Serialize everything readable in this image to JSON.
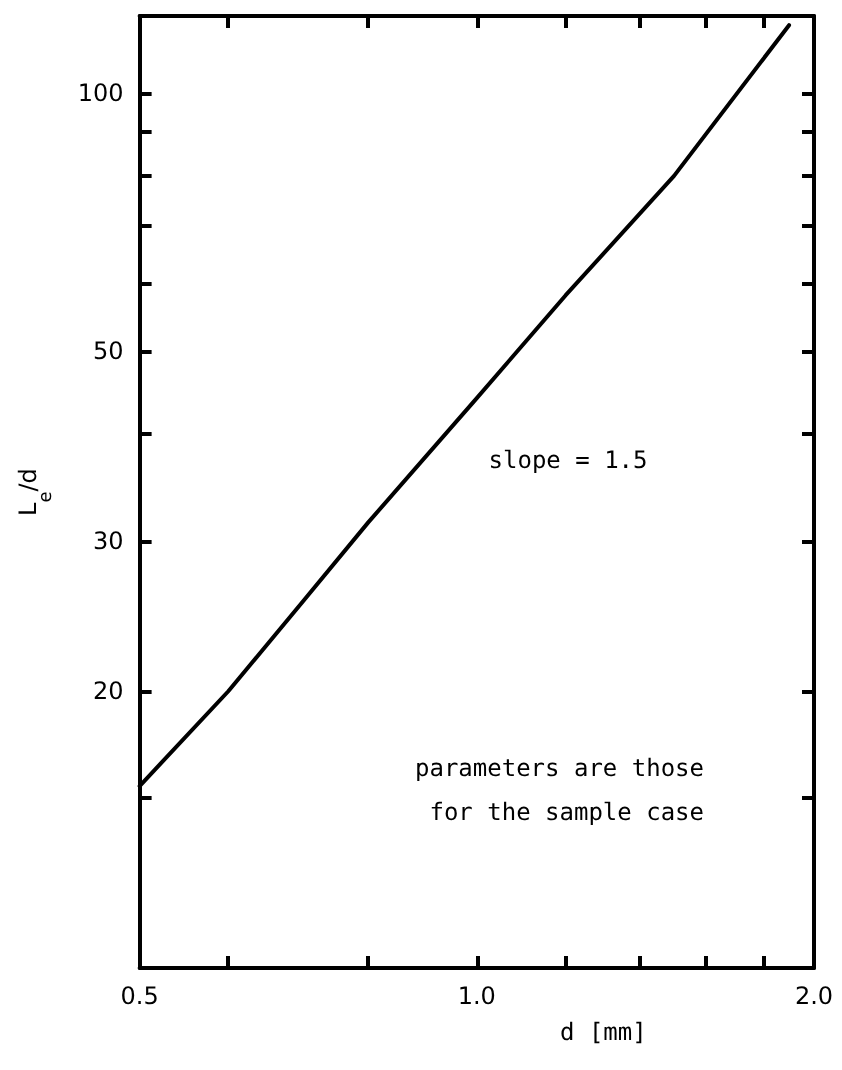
{
  "chart_data": {
    "type": "line",
    "xlabel": "d [mm]",
    "ylabel": "L$_{e}$/d",
    "x": [
      0.5,
      0.6,
      0.7,
      0.8,
      1.0,
      1.2,
      1.5,
      1.9
    ],
    "series": [
      {
        "color": "#000000",
        "values": [
          15.5,
          20,
          25.5,
          31.5,
          44,
          58,
          80,
          120
        ]
      }
    ],
    "log": "xy",
    "xlim": [
      0.5,
      2.0
    ],
    "ylim": [
      9.5,
      123
    ],
    "xticks": [
      0.5,
      {
        "value": 0.6,
        "label": null
      },
      {
        "value": 0.8,
        "label": null
      },
      {
        "value": 1.0,
        "label": "1.0"
      },
      {
        "value": 1.2,
        "label": null
      },
      {
        "value": 1.4,
        "label": null
      },
      {
        "value": 1.6,
        "label": null
      },
      {
        "value": 1.8,
        "label": null
      },
      {
        "value": 2.0,
        "label": "2.0"
      }
    ],
    "yticks": [
      {
        "value": 9.5,
        "label": null
      },
      {
        "value": 15,
        "label": null
      },
      20,
      30,
      {
        "value": 40,
        "label": null
      },
      50,
      {
        "value": 60,
        "label": null
      },
      {
        "value": 70,
        "label": null
      },
      {
        "value": 80,
        "label": null
      },
      {
        "value": 90,
        "label": null
      },
      100
    ],
    "annotations": [
      "slope = 1.5",
      "parameters are those\nfor the sample case"
    ],
    "grid": false,
    "marker": "none",
    "line_style": "solid"
  }
}
